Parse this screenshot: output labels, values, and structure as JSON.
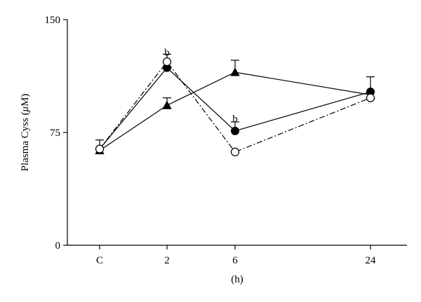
{
  "chart_data": {
    "type": "line",
    "categories": [
      "C",
      "2",
      "6",
      "24"
    ],
    "x": [
      0,
      2,
      6,
      24
    ],
    "xlabel": "(h)",
    "ylabel_prefix": "Plasma Cyss (",
    "ylabel_unit_italic": "μ",
    "ylabel_suffix": "M)",
    "ylim": [
      0,
      150
    ],
    "yticks": [
      "0",
      "75",
      "150"
    ],
    "ytick_values": [
      0,
      75,
      150
    ],
    "grid": false,
    "series": [
      {
        "marker": "filled-circle",
        "line": "solid",
        "values": [
          64,
          118,
          76,
          102
        ],
        "error": [
          0,
          0,
          6,
          0
        ]
      },
      {
        "marker": "open-circle",
        "line": "dash-dot",
        "values": [
          64,
          122,
          62,
          98
        ],
        "error": [
          0,
          5,
          0,
          0
        ]
      },
      {
        "marker": "filled-triangle",
        "line": "solid",
        "values": [
          63,
          93,
          115,
          100
        ],
        "error": [
          7,
          5,
          8,
          12
        ]
      }
    ],
    "annotations": [
      {
        "text": "b",
        "x": 2,
        "y": 126
      },
      {
        "text": "b",
        "x": 6,
        "y": 82
      }
    ]
  }
}
